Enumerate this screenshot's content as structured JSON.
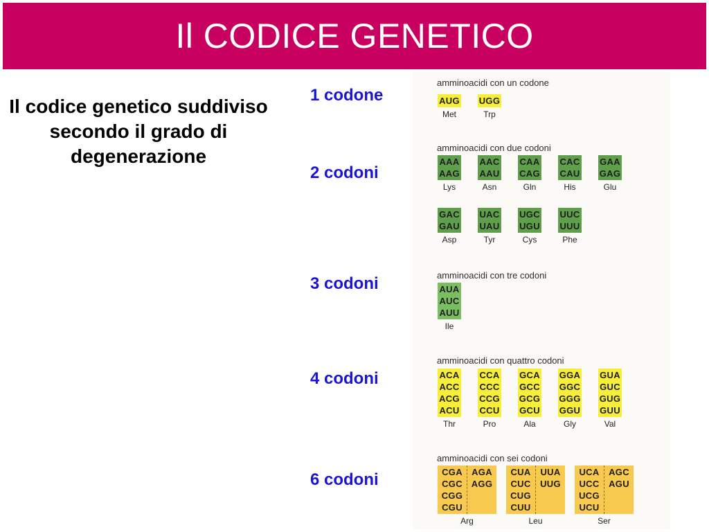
{
  "title": "Il CODICE GENETICO",
  "subtitle": "Il codice genetico suddiviso secondo il grado di degenerazione",
  "row_labels": [
    "1 codone",
    "2 codoni",
    "3 codoni",
    "4 codoni",
    "6 codoni"
  ],
  "colors": {
    "title_bar": "#c8005f",
    "row_label": "#1a14d6",
    "one_codon_box": "#f6ee38",
    "two_codon_box": "#5f9e4a",
    "three_codon_box": "#7bbd63",
    "four_codon_box": "#f6ee38",
    "six_codon_box": "#f7c94e"
  },
  "figure": {
    "one": {
      "heading": "amminoacidi con un codone",
      "items": [
        {
          "codons": [
            "AUG"
          ],
          "aa": "Met"
        },
        {
          "codons": [
            "UGG"
          ],
          "aa": "Trp"
        }
      ]
    },
    "two": {
      "heading": "amminoacidi con due codoni",
      "row1": [
        {
          "codons": [
            "AAA",
            "AAG"
          ],
          "aa": "Lys"
        },
        {
          "codons": [
            "AAC",
            "AAU"
          ],
          "aa": "Asn"
        },
        {
          "codons": [
            "CAA",
            "CAG"
          ],
          "aa": "Gln"
        },
        {
          "codons": [
            "CAC",
            "CAU"
          ],
          "aa": "His"
        },
        {
          "codons": [
            "GAA",
            "GAG"
          ],
          "aa": "Glu"
        }
      ],
      "row2": [
        {
          "codons": [
            "GAC",
            "GAU"
          ],
          "aa": "Asp"
        },
        {
          "codons": [
            "UAC",
            "UAU"
          ],
          "aa": "Tyr"
        },
        {
          "codons": [
            "UGC",
            "UGU"
          ],
          "aa": "Cys"
        },
        {
          "codons": [
            "UUC",
            "UUU"
          ],
          "aa": "Phe"
        }
      ]
    },
    "three": {
      "heading": "amminoacidi con tre codoni",
      "items": [
        {
          "codons": [
            "AUA",
            "AUC",
            "AUU"
          ],
          "aa": "Ile"
        }
      ]
    },
    "four": {
      "heading": "amminoacidi con quattro codoni",
      "items": [
        {
          "codons": [
            "ACA",
            "ACC",
            "ACG",
            "ACU"
          ],
          "aa": "Thr"
        },
        {
          "codons": [
            "CCA",
            "CCC",
            "CCG",
            "CCU"
          ],
          "aa": "Pro"
        },
        {
          "codons": [
            "GCA",
            "GCC",
            "GCG",
            "GCU"
          ],
          "aa": "Ala"
        },
        {
          "codons": [
            "GGA",
            "GGC",
            "GGG",
            "GGU"
          ],
          "aa": "Gly"
        },
        {
          "codons": [
            "GUA",
            "GUC",
            "GUG",
            "GUU"
          ],
          "aa": "Val"
        }
      ]
    },
    "six": {
      "heading": "amminoacidi con sei codoni",
      "items": [
        {
          "left": [
            "CGA",
            "CGC",
            "CGG",
            "CGU"
          ],
          "right": [
            "AGA",
            "AGG"
          ],
          "aa": "Arg"
        },
        {
          "left": [
            "CUA",
            "CUC",
            "CUG",
            "CUU"
          ],
          "right": [
            "UUA",
            "UUG"
          ],
          "aa": "Leu"
        },
        {
          "left": [
            "UCA",
            "UCC",
            "UCG",
            "UCU"
          ],
          "right": [
            "AGC",
            "AGU"
          ],
          "aa": "Ser"
        }
      ]
    }
  }
}
